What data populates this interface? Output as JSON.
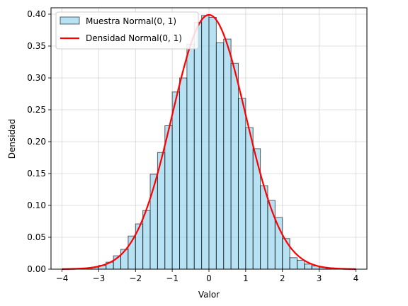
{
  "chart_data": {
    "type": "bar",
    "xlabel": "Valor",
    "ylabel": "Densidad",
    "xlim": [
      -4.3,
      4.3
    ],
    "ylim": [
      0,
      0.41
    ],
    "x_ticks": [
      -4,
      -3,
      -2,
      -1,
      0,
      1,
      2,
      3,
      4
    ],
    "y_ticks": [
      0.0,
      0.05,
      0.1,
      0.15,
      0.2,
      0.25,
      0.3,
      0.35,
      0.4
    ],
    "y_tick_labels": [
      "0.00",
      "0.05",
      "0.10",
      "0.15",
      "0.20",
      "0.25",
      "0.30",
      "0.35",
      "0.40"
    ],
    "grid": true,
    "legend_position": "top-left",
    "legend": [
      "Muestra Normal(0, 1)",
      "Densidad Normal(0, 1)"
    ],
    "histogram": {
      "name": "Muestra Normal(0, 1)",
      "bin_width": 0.2,
      "bin_starts": [
        -3.2,
        -3.0,
        -2.8,
        -2.6,
        -2.4,
        -2.2,
        -2.0,
        -1.8,
        -1.6,
        -1.4,
        -1.2,
        -1.0,
        -0.8,
        -0.6,
        -0.4,
        -0.2,
        0.0,
        0.2,
        0.4,
        0.6,
        0.8,
        1.0,
        1.2,
        1.4,
        1.6,
        1.8,
        2.0,
        2.2,
        2.4,
        2.6,
        2.8,
        3.0,
        3.2
      ],
      "densities": [
        0.003,
        0.006,
        0.011,
        0.021,
        0.031,
        0.052,
        0.071,
        0.092,
        0.149,
        0.183,
        0.225,
        0.278,
        0.3,
        0.353,
        0.387,
        0.398,
        0.395,
        0.355,
        0.361,
        0.323,
        0.268,
        0.222,
        0.189,
        0.131,
        0.108,
        0.081,
        0.048,
        0.018,
        0.014,
        0.008,
        0.005,
        0.003,
        0.002
      ],
      "fill_color": "#87ceeb",
      "edge_color": "#000000"
    },
    "curve": {
      "name": "Densidad Normal(0, 1)",
      "x_range": [
        -4,
        4
      ],
      "mean": 0,
      "std": 1,
      "color": "#ff0000"
    }
  }
}
